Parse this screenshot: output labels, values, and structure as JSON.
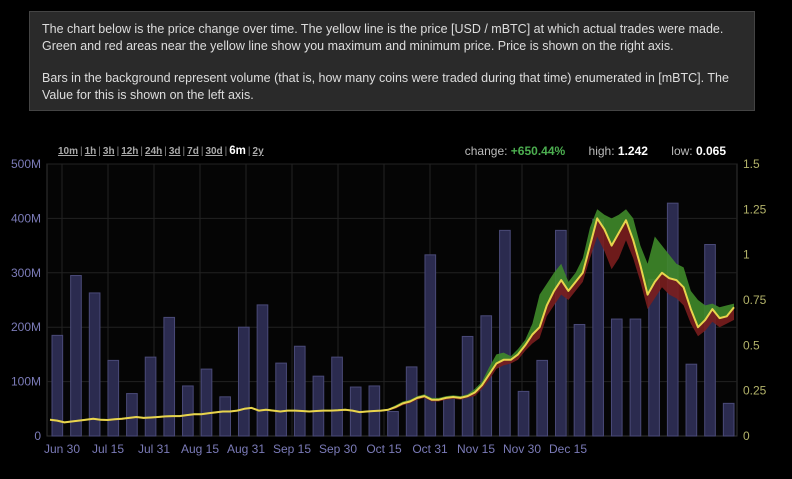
{
  "info": {
    "p1": "The chart below is the price change over time. The yellow line is the price [USD / mBTC] at which actual trades were made. Green and red areas near the yellow line show you maximum and minimum price. Price is shown on the right axis.",
    "p2": "Bars in the background represent volume (that is, how many coins were traded during that time) enumerated in [mBTC]. The Value for this is shown on the left axis."
  },
  "ranges": [
    "10m",
    "1h",
    "3h",
    "12h",
    "24h",
    "3d",
    "7d",
    "30d",
    "6m",
    "2y"
  ],
  "active_range": "6m",
  "stats": {
    "change_label": "change:",
    "change_value": "+650.44%",
    "high_label": "high:",
    "high_value": "1.242",
    "low_label": "low:",
    "low_value": "0.065"
  },
  "chart_data": {
    "type": "bar+line",
    "x_ticks": [
      "Jun 30",
      "Jul 15",
      "Jul 31",
      "Aug 15",
      "Aug 31",
      "Sep 15",
      "Sep 30",
      "Oct 15",
      "Oct 31",
      "Nov 15",
      "Nov 30",
      "Dec 15"
    ],
    "y_left_ticks": [
      "0",
      "100M",
      "200M",
      "300M",
      "400M",
      "500M"
    ],
    "y_right_ticks": [
      "0",
      "0.25",
      "0.5",
      "0.75",
      "1",
      "1.25",
      "1.5"
    ],
    "volume_ylim": [
      0,
      500
    ],
    "price_ylim": [
      0,
      1.5
    ],
    "volume_m": [
      185,
      295,
      263,
      139,
      78,
      145,
      218,
      92,
      123,
      72,
      200,
      241,
      134,
      165,
      110,
      145,
      90,
      92,
      45,
      127,
      333,
      70,
      183,
      221,
      378,
      82,
      139,
      378,
      205,
      398,
      215,
      215,
      288,
      428,
      132,
      352,
      60
    ],
    "price": [
      0.09,
      0.085,
      0.075,
      0.08,
      0.085,
      0.09,
      0.095,
      0.09,
      0.088,
      0.092,
      0.095,
      0.1,
      0.105,
      0.1,
      0.102,
      0.105,
      0.108,
      0.11,
      0.11,
      0.115,
      0.12,
      0.12,
      0.125,
      0.13,
      0.135,
      0.135,
      0.14,
      0.15,
      0.155,
      0.14,
      0.145,
      0.14,
      0.135,
      0.14,
      0.14,
      0.138,
      0.135,
      0.138,
      0.14,
      0.14,
      0.142,
      0.145,
      0.14,
      0.132,
      0.135,
      0.138,
      0.14,
      0.145,
      0.16,
      0.18,
      0.19,
      0.21,
      0.22,
      0.2,
      0.2,
      0.21,
      0.215,
      0.21,
      0.22,
      0.24,
      0.28,
      0.34,
      0.4,
      0.42,
      0.42,
      0.45,
      0.5,
      0.56,
      0.6,
      0.72,
      0.8,
      0.86,
      0.8,
      0.85,
      0.9,
      1.05,
      1.2,
      1.14,
      1.05,
      1.12,
      1.19,
      1.08,
      0.94,
      0.78,
      0.85,
      0.9,
      0.87,
      0.86,
      0.82,
      0.7,
      0.6,
      0.64,
      0.7,
      0.65,
      0.66,
      0.71
    ],
    "price_high": [
      0.095,
      0.09,
      0.08,
      0.085,
      0.09,
      0.095,
      0.1,
      0.095,
      0.093,
      0.097,
      0.1,
      0.105,
      0.11,
      0.105,
      0.107,
      0.11,
      0.113,
      0.115,
      0.115,
      0.12,
      0.125,
      0.125,
      0.13,
      0.135,
      0.14,
      0.14,
      0.145,
      0.155,
      0.16,
      0.145,
      0.15,
      0.145,
      0.14,
      0.145,
      0.145,
      0.143,
      0.14,
      0.143,
      0.145,
      0.145,
      0.147,
      0.15,
      0.145,
      0.137,
      0.14,
      0.143,
      0.145,
      0.15,
      0.17,
      0.19,
      0.2,
      0.22,
      0.23,
      0.21,
      0.21,
      0.22,
      0.225,
      0.22,
      0.23,
      0.26,
      0.3,
      0.38,
      0.45,
      0.46,
      0.44,
      0.48,
      0.53,
      0.62,
      0.78,
      0.84,
      0.9,
      0.95,
      0.85,
      0.9,
      0.98,
      1.15,
      1.25,
      1.22,
      1.2,
      1.22,
      1.25,
      1.2,
      1.05,
      0.95,
      1.1,
      1.05,
      1.0,
      0.95,
      0.93,
      0.8,
      0.75,
      0.72,
      0.73,
      0.71,
      0.72,
      0.73
    ],
    "price_low": [
      0.085,
      0.08,
      0.07,
      0.075,
      0.08,
      0.085,
      0.09,
      0.085,
      0.083,
      0.087,
      0.09,
      0.095,
      0.1,
      0.095,
      0.097,
      0.1,
      0.103,
      0.105,
      0.105,
      0.11,
      0.115,
      0.115,
      0.12,
      0.125,
      0.13,
      0.13,
      0.135,
      0.145,
      0.15,
      0.135,
      0.14,
      0.135,
      0.13,
      0.135,
      0.135,
      0.133,
      0.13,
      0.133,
      0.135,
      0.135,
      0.137,
      0.14,
      0.135,
      0.127,
      0.13,
      0.133,
      0.135,
      0.14,
      0.15,
      0.17,
      0.18,
      0.2,
      0.21,
      0.19,
      0.19,
      0.2,
      0.205,
      0.2,
      0.21,
      0.22,
      0.26,
      0.31,
      0.37,
      0.39,
      0.4,
      0.42,
      0.47,
      0.51,
      0.54,
      0.66,
      0.72,
      0.78,
      0.75,
      0.8,
      0.85,
      0.98,
      1.1,
      1.02,
      0.92,
      0.98,
      1.08,
      0.98,
      0.85,
      0.7,
      0.76,
      0.82,
      0.78,
      0.76,
      0.72,
      0.62,
      0.55,
      0.58,
      0.63,
      0.6,
      0.62,
      0.64
    ]
  },
  "colors": {
    "bar_fill": "#2b2b4f",
    "bar_stroke": "#4a4a78",
    "grid": "#222",
    "price_line": "#e8d44d",
    "high_area": "#3f8a2a",
    "low_area": "#7a1e1e"
  }
}
